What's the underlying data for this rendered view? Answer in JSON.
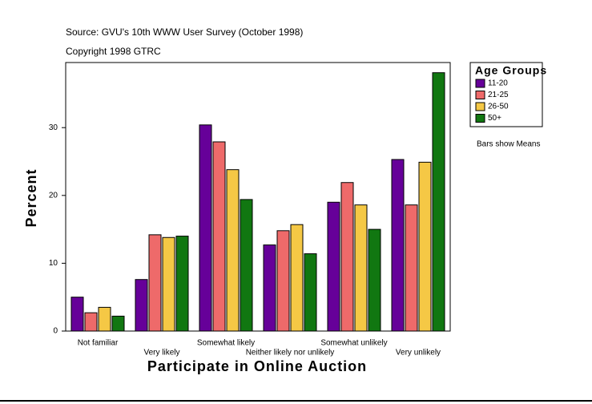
{
  "chart_data": {
    "type": "bar",
    "title": "Source: GVU's 10th WWW User Survey (October 1998)",
    "subtitle": "Copyright 1998 GTRC",
    "x_label": "Participate in Online Auction",
    "y_label": "Percent",
    "legend_title": "Age Groups",
    "note": "Bars show Means",
    "categories": [
      "Not familiar",
      "Very likely",
      "Somewhat likely",
      "Neither likely nor unlikely",
      "Somewhat unlikely",
      "Very unlikely"
    ],
    "series": [
      {
        "name": "11-20",
        "color": "#660099",
        "values": [
          5.0,
          7.6,
          30.4,
          12.7,
          19.0,
          25.3
        ]
      },
      {
        "name": "21-25",
        "color": "#ee6a6a",
        "values": [
          2.7,
          14.2,
          27.9,
          14.8,
          21.9,
          18.6
        ]
      },
      {
        "name": "26-50",
        "color": "#f5c845",
        "values": [
          3.5,
          13.8,
          23.8,
          15.7,
          18.6,
          24.9
        ]
      },
      {
        "name": "50+",
        "color": "#117711",
        "values": [
          2.2,
          14.0,
          19.4,
          11.4,
          15.0,
          38.1
        ]
      }
    ],
    "ylim": [
      0,
      39.6
    ],
    "yticks": [
      0,
      10,
      20,
      30
    ]
  }
}
